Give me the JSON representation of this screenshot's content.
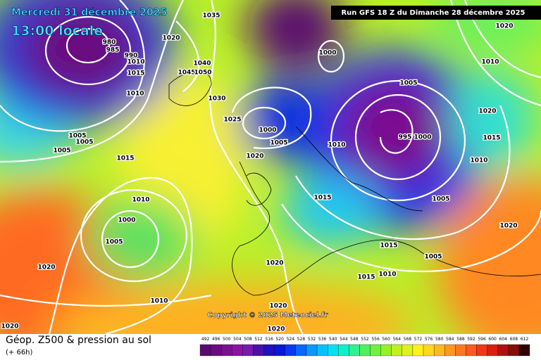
{
  "header": {
    "date": "Mercredi 31 décembre 2025",
    "local_time": "13:00 locale",
    "run": "Run GFS 18 Z du Dimanche 28 décembre 2025"
  },
  "copyright": "Copyright © 2025 Meteociel.fr",
  "footer": {
    "title": "Géop. Z500 & pression au sol",
    "lead": "(+ 66h)"
  },
  "colorbar": {
    "ticks": [
      492,
      496,
      500,
      504,
      508,
      512,
      516,
      520,
      524,
      528,
      532,
      536,
      540,
      544,
      548,
      552,
      556,
      560,
      564,
      568,
      572,
      576,
      580,
      584,
      588,
      592,
      596,
      600,
      604,
      608,
      612
    ],
    "colors": [
      "#5a0a6e",
      "#6a0c80",
      "#7a1090",
      "#8a14a0",
      "#7a18b0",
      "#4a10a8",
      "#2010c0",
      "#0818d8",
      "#0838f0",
      "#0868ff",
      "#0898ff",
      "#08c0ff",
      "#08e0f0",
      "#10f0c8",
      "#30f090",
      "#50f060",
      "#70f040",
      "#98f028",
      "#c0f020",
      "#e0f020",
      "#fff020",
      "#ffd820",
      "#ffb820",
      "#ff9820",
      "#ff7820",
      "#ff5820",
      "#f03818",
      "#d82010",
      "#b01010",
      "#801008",
      "#300000"
    ]
  },
  "isobar_labels": [
    1035,
    1020,
    980,
    985,
    990,
    1010,
    1015,
    1010,
    1040,
    1045,
    1050,
    1030,
    1025,
    1000,
    1005,
    1020,
    1000,
    1005,
    1010,
    995,
    1000,
    1020,
    1010,
    1020,
    1015,
    1005,
    1005,
    1005,
    1015,
    1010,
    1000,
    1005,
    1020,
    1010,
    1020,
    1020,
    1020,
    1020,
    1015,
    1015,
    1005,
    1005,
    1020,
    1010,
    1015,
    1010
  ]
}
